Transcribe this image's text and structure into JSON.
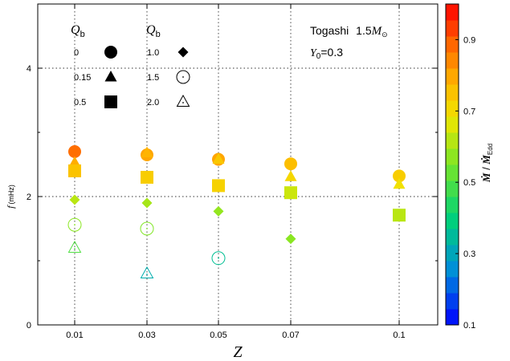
{
  "chart_data": {
    "type": "scatter",
    "x_label": "Z",
    "y_label": "f",
    "y_unit": "(mHz)",
    "x_ticks": [
      "0.01",
      "0.03",
      "0.05",
      "0.07",
      "0.1"
    ],
    "x_tick_values": [
      0.01,
      0.03,
      0.05,
      0.07,
      0.1
    ],
    "y_ticks": [
      "0",
      "2",
      "4"
    ],
    "y_tick_values": [
      0,
      2,
      4
    ],
    "ylim": [
      0,
      5
    ],
    "grid": "dotted at x and y ticks",
    "annotation": {
      "model": "Togashi",
      "mass_value": "1.5",
      "mass_symbol": "M",
      "mass_sub": "⊙",
      "y0_symbol": "Y",
      "y0_sub": "0",
      "y0_value": "=0.3"
    },
    "legend": {
      "title_symbol": "Q",
      "title_sub": "b",
      "entries": [
        {
          "label": "0",
          "marker": "circle-filled"
        },
        {
          "label": "0.15",
          "marker": "triangle-filled"
        },
        {
          "label": "0.5",
          "marker": "square-filled"
        },
        {
          "label": "1.0",
          "marker": "diamond-filled"
        },
        {
          "label": "1.5",
          "marker": "circle-open-dot"
        },
        {
          "label": "2.0",
          "marker": "triangle-open-dot"
        }
      ]
    },
    "colorbar": {
      "label_pre": "Ṁ",
      "label_mid": " / ",
      "label_post": "Ṁ",
      "label_sub": "Edd",
      "range": [
        0.1,
        1.0
      ],
      "ticks": [
        "0.1",
        "0.3",
        "0.5",
        "0.7",
        "0.9"
      ],
      "tick_values": [
        0.1,
        0.3,
        0.5,
        0.7,
        0.9
      ],
      "n_steps": 20
    },
    "points": [
      {
        "x": 0.01,
        "y": 2.7,
        "qb": "0",
        "color_value": 0.88
      },
      {
        "x": 0.01,
        "y": 2.53,
        "qb": "0.15",
        "color_value": 0.79
      },
      {
        "x": 0.01,
        "y": 2.4,
        "qb": "0.5",
        "color_value": 0.75
      },
      {
        "x": 0.01,
        "y": 1.95,
        "qb": "1.0",
        "color_value": 0.62
      },
      {
        "x": 0.01,
        "y": 1.56,
        "qb": "1.5",
        "color_value": 0.57
      },
      {
        "x": 0.01,
        "y": 1.2,
        "qb": "2.0",
        "color_value": 0.5
      },
      {
        "x": 0.03,
        "y": 2.65,
        "qb": "0",
        "color_value": 0.8
      },
      {
        "x": 0.03,
        "y": 2.68,
        "qb": "0.15",
        "color_value": 0.78
      },
      {
        "x": 0.03,
        "y": 2.3,
        "qb": "0.5",
        "color_value": 0.73
      },
      {
        "x": 0.03,
        "y": 1.9,
        "qb": "1.0",
        "color_value": 0.6
      },
      {
        "x": 0.03,
        "y": 1.5,
        "qb": "1.5",
        "color_value": 0.56
      },
      {
        "x": 0.03,
        "y": 0.8,
        "qb": "2.0",
        "color_value": 0.32
      },
      {
        "x": 0.05,
        "y": 2.58,
        "qb": "0",
        "color_value": 0.8
      },
      {
        "x": 0.05,
        "y": 2.58,
        "qb": "0.15",
        "color_value": 0.74
      },
      {
        "x": 0.05,
        "y": 2.17,
        "qb": "0.5",
        "color_value": 0.72
      },
      {
        "x": 0.05,
        "y": 1.77,
        "qb": "1.0",
        "color_value": 0.58
      },
      {
        "x": 0.05,
        "y": 1.04,
        "qb": "1.5",
        "color_value": 0.36
      },
      {
        "x": 0.07,
        "y": 2.51,
        "qb": "0",
        "color_value": 0.76
      },
      {
        "x": 0.07,
        "y": 2.31,
        "qb": "0.15",
        "color_value": 0.71
      },
      {
        "x": 0.07,
        "y": 2.06,
        "qb": "0.5",
        "color_value": 0.64
      },
      {
        "x": 0.07,
        "y": 1.34,
        "qb": "1.0",
        "color_value": 0.57
      },
      {
        "x": 0.1,
        "y": 2.32,
        "qb": "0",
        "color_value": 0.73
      },
      {
        "x": 0.1,
        "y": 2.19,
        "qb": "0.15",
        "color_value": 0.69
      },
      {
        "x": 0.1,
        "y": 1.71,
        "qb": "0.5",
        "color_value": 0.62
      }
    ]
  }
}
